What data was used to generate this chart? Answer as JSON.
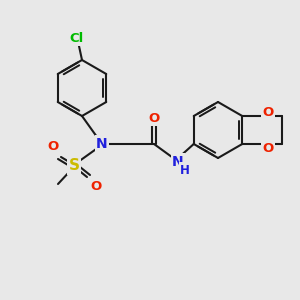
{
  "background_color": "#e8e8e8",
  "bond_color": "#1a1a1a",
  "line_width": 1.5,
  "atom_colors": {
    "Cl": "#00bb00",
    "N": "#2020dd",
    "O": "#ee2200",
    "S": "#ccbb00",
    "H": "#2020dd",
    "C": "#1a1a1a"
  },
  "font_size": 9.5,
  "dpi": 100,
  "figsize": [
    3.0,
    3.0
  ],
  "xlim": [
    0,
    300
  ],
  "ylim": [
    0,
    300
  ]
}
